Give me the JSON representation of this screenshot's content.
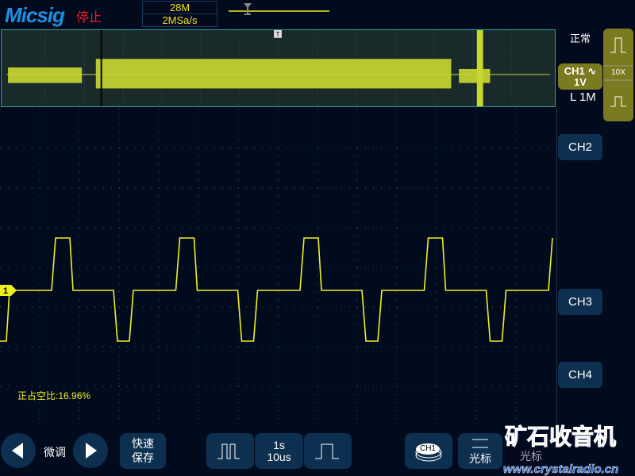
{
  "header": {
    "brand": "Micsig",
    "run_state": "停止",
    "memory_depth": "28M",
    "sample_rate": "2MSa/s"
  },
  "side": {
    "trigger_mode": "正常",
    "ch1_label": "CH1",
    "ch1_coupling_icon": "ac-wave-icon",
    "ch1_scale": "1V",
    "ch1_impedance": "L 1M",
    "probe": "10X",
    "ch2": "CH2",
    "ch3": "CH3",
    "ch4": "CH4"
  },
  "measurement": {
    "positive_duty": "正占空比:16.96%"
  },
  "bottom": {
    "fine_adjust": "微调",
    "quick_save": "快速\n保存",
    "timebase_top": "1s",
    "timebase_bottom": "10us",
    "ch1_icon_label": "CH1",
    "cursor1": "光标",
    "cursor2": "光标"
  },
  "watermark": {
    "line1": "矿石收音机",
    "line2": "www.crystalradio.cn"
  },
  "colors": {
    "ch1": "#f0f020",
    "accent": "#0e3050",
    "stop": "#e82020"
  },
  "marker": {
    "channel": "1",
    "trigger": "T"
  }
}
